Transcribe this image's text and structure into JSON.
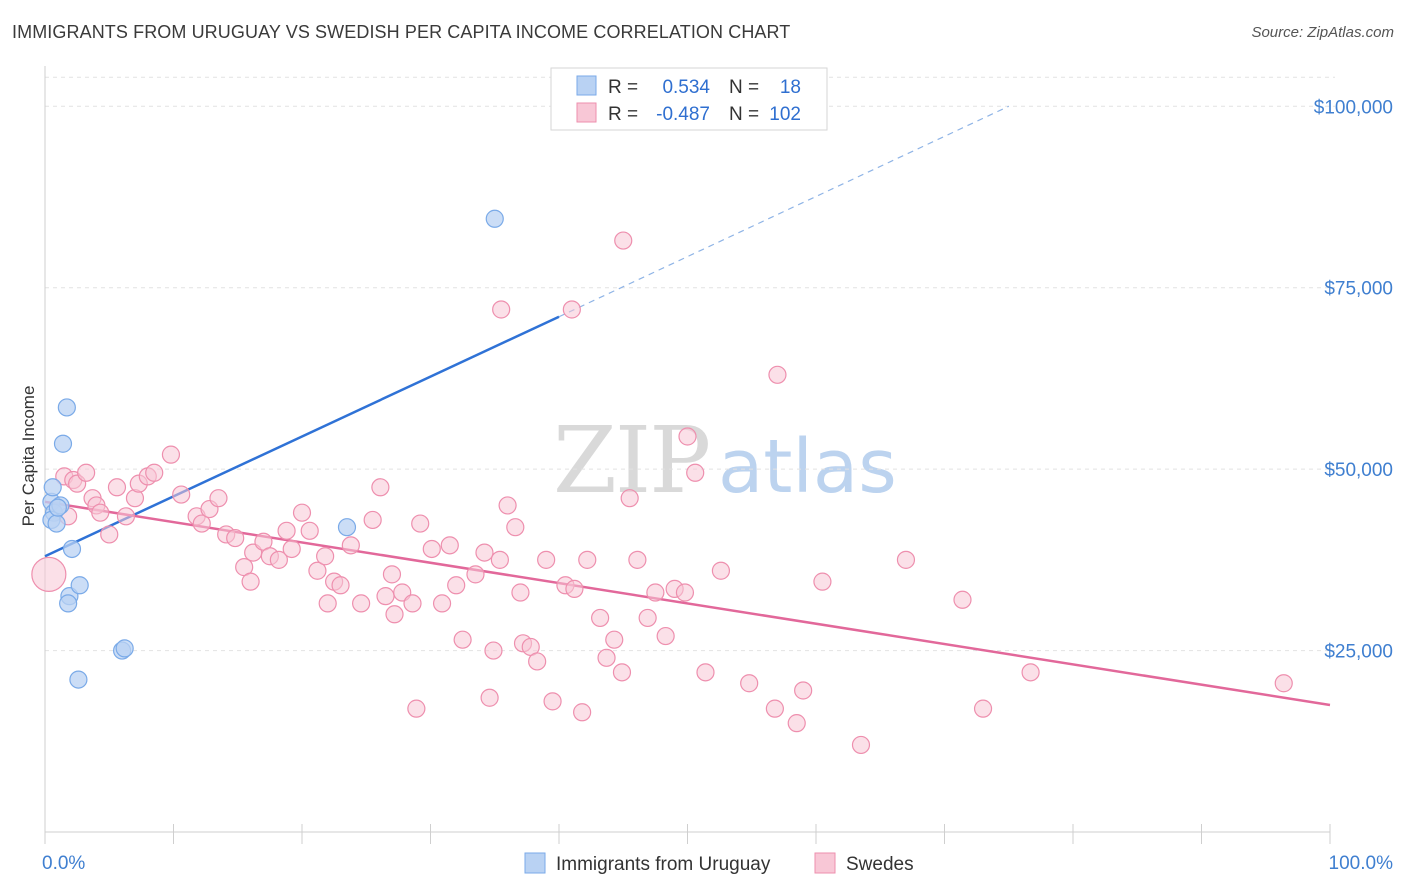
{
  "title": "IMMIGRANTS FROM URUGUAY VS SWEDISH PER CAPITA INCOME CORRELATION CHART",
  "source": "Source: ZipAtlas.com",
  "watermark": {
    "zip": "ZIP",
    "atlas": "atlas"
  },
  "legend": {
    "rows": [
      {
        "r_label": "R =",
        "r_value": "0.534",
        "n_label": "N =",
        "n_value": "18"
      },
      {
        "r_label": "R =",
        "r_value": "-0.487",
        "n_label": "N =",
        "n_value": "102"
      }
    ]
  },
  "chart_data": {
    "type": "scatter",
    "xlabel": "",
    "ylabel": "Per Capita Income",
    "xlim": [
      0,
      100
    ],
    "ylim": [
      0,
      105000
    ],
    "x_tick_labels": [
      "0.0%",
      "100.0%"
    ],
    "y_ticks": [
      {
        "value": 25000,
        "label": "$25,000"
      },
      {
        "value": 50000,
        "label": "$50,000"
      },
      {
        "value": 75000,
        "label": "$75,000"
      },
      {
        "value": 100000,
        "label": "$100,000"
      }
    ],
    "grid": true,
    "legend_position": "bottom",
    "series": [
      {
        "name": "Immigrants from Uruguay",
        "color": "#7aaae8",
        "fill": "#b9d2f3",
        "trend": {
          "x0": 0,
          "y0": 38000,
          "x1": 40,
          "y1": 71000,
          "x_dash_end": 75,
          "y_dash_end": 100000
        },
        "points": [
          [
            0.5,
            45500
          ],
          [
            0.7,
            44000
          ],
          [
            0.5,
            43000
          ],
          [
            0.9,
            42500
          ],
          [
            0.6,
            47500
          ],
          [
            1.2,
            45000
          ],
          [
            1.0,
            44700
          ],
          [
            1.4,
            53500
          ],
          [
            1.7,
            58500
          ],
          [
            2.1,
            39000
          ],
          [
            1.9,
            32500
          ],
          [
            1.8,
            31500
          ],
          [
            2.7,
            34000
          ],
          [
            2.6,
            21000
          ],
          [
            6.0,
            25000
          ],
          [
            6.2,
            25300
          ],
          [
            23.5,
            42000
          ],
          [
            35.0,
            84500
          ]
        ]
      },
      {
        "name": "Swedes",
        "color": "#ee8fae",
        "fill": "#f8c7d6",
        "trend": {
          "x0": 0,
          "y0": 45500,
          "x1": 100,
          "y1": 17500
        },
        "points": [
          [
            0.3,
            35500
          ],
          [
            1.5,
            49000
          ],
          [
            1.8,
            43500
          ],
          [
            2.2,
            48500
          ],
          [
            2.5,
            48000
          ],
          [
            3.2,
            49500
          ],
          [
            3.7,
            46000
          ],
          [
            4.0,
            45000
          ],
          [
            4.3,
            44000
          ],
          [
            5.0,
            41000
          ],
          [
            5.6,
            47500
          ],
          [
            6.3,
            43500
          ],
          [
            7.0,
            46000
          ],
          [
            7.3,
            48000
          ],
          [
            8.0,
            49000
          ],
          [
            8.5,
            49500
          ],
          [
            9.8,
            52000
          ],
          [
            10.6,
            46500
          ],
          [
            11.8,
            43500
          ],
          [
            12.2,
            42500
          ],
          [
            12.8,
            44500
          ],
          [
            13.5,
            46000
          ],
          [
            14.1,
            41000
          ],
          [
            14.8,
            40500
          ],
          [
            15.5,
            36500
          ],
          [
            16.0,
            34500
          ],
          [
            16.2,
            38500
          ],
          [
            17.0,
            40000
          ],
          [
            17.5,
            38000
          ],
          [
            18.2,
            37500
          ],
          [
            18.8,
            41500
          ],
          [
            19.2,
            39000
          ],
          [
            20.0,
            44000
          ],
          [
            20.6,
            41500
          ],
          [
            21.2,
            36000
          ],
          [
            21.8,
            38000
          ],
          [
            22.5,
            34500
          ],
          [
            23.0,
            34000
          ],
          [
            22.0,
            31500
          ],
          [
            23.8,
            39500
          ],
          [
            24.6,
            31500
          ],
          [
            25.5,
            43000
          ],
          [
            26.1,
            47500
          ],
          [
            26.5,
            32500
          ],
          [
            27.0,
            35500
          ],
          [
            27.8,
            33000
          ],
          [
            28.6,
            31500
          ],
          [
            29.2,
            42500
          ],
          [
            30.1,
            39000
          ],
          [
            30.9,
            31500
          ],
          [
            31.5,
            39500
          ],
          [
            32.0,
            34000
          ],
          [
            32.5,
            26500
          ],
          [
            33.5,
            35500
          ],
          [
            34.2,
            38500
          ],
          [
            34.9,
            25000
          ],
          [
            35.4,
            37500
          ],
          [
            36.0,
            45000
          ],
          [
            36.6,
            42000
          ],
          [
            37.2,
            26000
          ],
          [
            37.8,
            25500
          ],
          [
            38.3,
            23500
          ],
          [
            39.0,
            37500
          ],
          [
            39.5,
            18000
          ],
          [
            40.5,
            34000
          ],
          [
            41.2,
            33500
          ],
          [
            41.8,
            16500
          ],
          [
            42.2,
            37500
          ],
          [
            43.2,
            29500
          ],
          [
            43.7,
            24000
          ],
          [
            44.3,
            26500
          ],
          [
            44.9,
            22000
          ],
          [
            45.5,
            46000
          ],
          [
            46.1,
            37500
          ],
          [
            46.9,
            29500
          ],
          [
            47.5,
            33000
          ],
          [
            48.3,
            27000
          ],
          [
            49.0,
            33500
          ],
          [
            49.8,
            33000
          ],
          [
            35.5,
            72000
          ],
          [
            41.0,
            72000
          ],
          [
            45.0,
            81500
          ],
          [
            50.0,
            54500
          ],
          [
            50.6,
            49500
          ],
          [
            51.4,
            22000
          ],
          [
            52.6,
            36000
          ],
          [
            54.8,
            20500
          ],
          [
            56.8,
            17000
          ],
          [
            57.0,
            63000
          ],
          [
            58.5,
            15000
          ],
          [
            59.0,
            19500
          ],
          [
            60.5,
            34500
          ],
          [
            63.5,
            12000
          ],
          [
            67.0,
            37500
          ],
          [
            71.4,
            32000
          ],
          [
            73.0,
            17000
          ],
          [
            76.7,
            22000
          ],
          [
            96.4,
            20500
          ],
          [
            34.6,
            18500
          ],
          [
            28.9,
            17000
          ],
          [
            37.0,
            33000
          ],
          [
            27.2,
            30000
          ]
        ]
      }
    ]
  }
}
